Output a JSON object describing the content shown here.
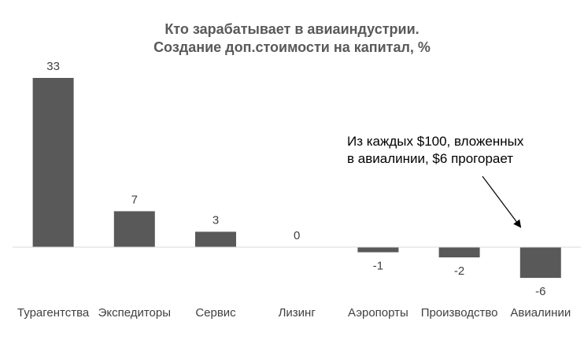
{
  "chart_data": {
    "type": "bar",
    "title_line1": "Кто зарабатывает в авиаиндустрии.",
    "title_line2": "Создание доп.стоимости на капитал, %",
    "categories": [
      "Турагентства",
      "Экспедиторы",
      "Сервис",
      "Лизинг",
      "Аэропорты",
      "Производство",
      "Авиалинии"
    ],
    "values": [
      33,
      7,
      3,
      0,
      -1,
      -2,
      -6
    ],
    "value_labels": [
      "33",
      "7",
      "3",
      "0",
      "-1",
      "-2",
      "-6"
    ],
    "xlabel": "",
    "ylabel": "",
    "grid": false,
    "bar_color": "#595959",
    "annotation": {
      "line1": "Из каждых $100, вложенных",
      "line2": "в авиалинии, $6 прогорает",
      "points_to": "Авиалинии"
    }
  }
}
